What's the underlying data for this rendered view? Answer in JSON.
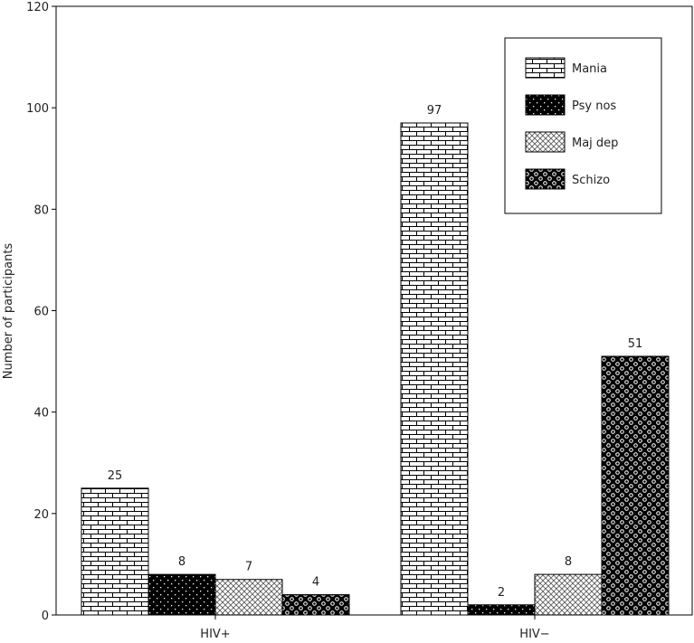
{
  "chart_data": {
    "type": "bar",
    "categories": [
      "HIV+",
      "HIV−"
    ],
    "series": [
      {
        "name": "Mania",
        "values": [
          25,
          97
        ],
        "pattern": "brick"
      },
      {
        "name": "Psy nos",
        "values": [
          8,
          2
        ],
        "pattern": "dots"
      },
      {
        "name": "Maj dep",
        "values": [
          7,
          8
        ],
        "pattern": "crosshatch"
      },
      {
        "name": "Schizo",
        "values": [
          4,
          51
        ],
        "pattern": "spheres"
      }
    ],
    "ylabel": "Number of participants",
    "ylim": [
      0,
      120
    ],
    "yticks": [
      0,
      20,
      40,
      60,
      80,
      100,
      120
    ],
    "legend_position": "top-right",
    "grid": false
  }
}
